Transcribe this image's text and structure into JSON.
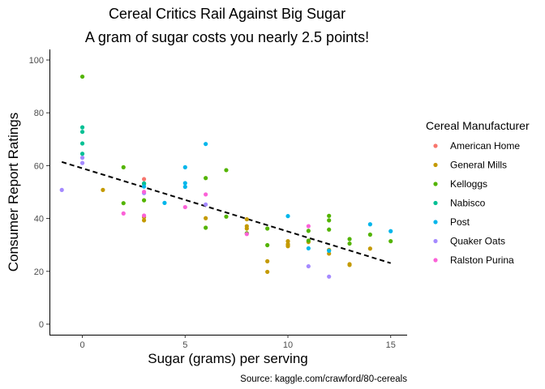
{
  "chart_data": {
    "type": "scatter",
    "title": "Cereal Critics Rail Against Big Sugar",
    "subtitle": "A gram of sugar costs you nearly 2.5 points!",
    "xlabel": "Sugar (grams) per serving",
    "ylabel": "Consumer Report Ratings",
    "caption": "Source: kaggle.com/crawford/80-cereals",
    "xlim": [
      -1.6,
      15.8
    ],
    "ylim": [
      -4,
      104
    ],
    "xticks": [
      0,
      5,
      10,
      15
    ],
    "yticks": [
      0,
      20,
      40,
      60,
      80,
      100
    ],
    "grid": false,
    "legend_title": "Cereal Manufacturer",
    "legend_position": "right",
    "trend_line": {
      "x": [
        -1,
        15
      ],
      "y": [
        61.4,
        23.1
      ],
      "style": "dashed",
      "color": "#000000"
    },
    "series": [
      {
        "name": "American Home",
        "color": "#F8766D",
        "points": [
          [
            3,
            54.9
          ]
        ]
      },
      {
        "name": "General Mills",
        "color": "#C49A00",
        "points": [
          [
            1,
            50.8
          ],
          [
            3,
            40.5
          ],
          [
            3,
            39.3
          ],
          [
            6,
            40.1
          ],
          [
            8,
            39.7
          ],
          [
            8,
            37.1
          ],
          [
            8,
            36.2
          ],
          [
            9,
            23.8
          ],
          [
            9,
            19.8
          ],
          [
            10,
            31.4
          ],
          [
            10,
            30.3
          ],
          [
            10,
            29.9
          ],
          [
            10,
            29.5
          ],
          [
            11,
            31.1
          ],
          [
            12,
            28.1
          ],
          [
            12,
            26.7
          ],
          [
            13,
            22.7
          ],
          [
            13,
            22.4
          ],
          [
            14,
            28.6
          ]
        ]
      },
      {
        "name": "Kelloggs",
        "color": "#53B400",
        "points": [
          [
            0,
            93.7
          ],
          [
            2,
            59.4
          ],
          [
            2,
            45.8
          ],
          [
            3,
            53.1
          ],
          [
            3,
            46.9
          ],
          [
            6,
            55.3
          ],
          [
            6,
            36.5
          ],
          [
            7,
            58.3
          ],
          [
            7,
            40.7
          ],
          [
            8,
            34.4
          ],
          [
            9,
            29.9
          ],
          [
            9,
            36.2
          ],
          [
            11,
            35.3
          ],
          [
            11,
            31.6
          ],
          [
            12,
            41.0
          ],
          [
            12,
            39.3
          ],
          [
            12,
            35.8
          ],
          [
            13,
            32.2
          ],
          [
            13,
            30.5
          ],
          [
            14,
            33.9
          ],
          [
            15,
            31.4
          ]
        ]
      },
      {
        "name": "Nabisco",
        "color": "#00C094",
        "points": [
          [
            0,
            74.5
          ],
          [
            0,
            72.8
          ],
          [
            0,
            68.4
          ],
          [
            0,
            64.5
          ],
          [
            3,
            53.3
          ]
        ]
      },
      {
        "name": "Post",
        "color": "#00B6EB",
        "points": [
          [
            3,
            52.1
          ],
          [
            4,
            45.9
          ],
          [
            5,
            59.4
          ],
          [
            5,
            53.4
          ],
          [
            5,
            52.0
          ],
          [
            6,
            68.2
          ],
          [
            10,
            40.9
          ],
          [
            11,
            28.7
          ],
          [
            12,
            27.8
          ],
          [
            14,
            37.8
          ],
          [
            15,
            35.2
          ]
        ]
      },
      {
        "name": "Quaker Oats",
        "color": "#A58AFF",
        "points": [
          [
            -1,
            50.8
          ],
          [
            0,
            63.0
          ],
          [
            0,
            61.0
          ],
          [
            3,
            49.6
          ],
          [
            6,
            45.3
          ],
          [
            11,
            21.9
          ],
          [
            12,
            18.0
          ]
        ]
      },
      {
        "name": "Ralston Purina",
        "color": "#FB61D7",
        "points": [
          [
            2,
            41.9
          ],
          [
            3,
            41.1
          ],
          [
            3,
            50.1
          ],
          [
            5,
            44.3
          ],
          [
            6,
            49.1
          ],
          [
            8,
            34.1
          ],
          [
            11,
            37.1
          ]
        ]
      }
    ]
  }
}
